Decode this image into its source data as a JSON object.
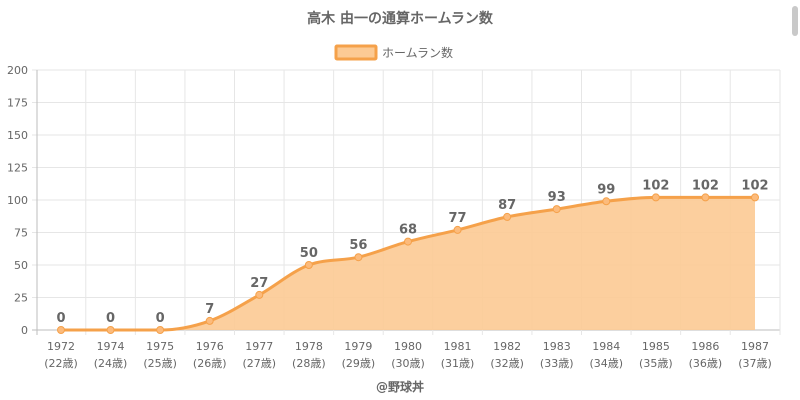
{
  "chart_data": {
    "type": "area",
    "title": "高木 由一の通算ホームラン数",
    "categories": [
      "1972",
      "1974",
      "1975",
      "1976",
      "1977",
      "1978",
      "1979",
      "1980",
      "1981",
      "1982",
      "1983",
      "1984",
      "1985",
      "1986",
      "1987"
    ],
    "category_sublabels": [
      "(22歳)",
      "(24歳)",
      "(25歳)",
      "(26歳)",
      "(27歳)",
      "(28歳)",
      "(29歳)",
      "(30歳)",
      "(31歳)",
      "(32歳)",
      "(33歳)",
      "(34歳)",
      "(35歳)",
      "(36歳)",
      "(37歳)"
    ],
    "series": [
      {
        "name": "ホームラン数",
        "values": [
          0,
          0,
          0,
          7,
          27,
          50,
          56,
          68,
          77,
          87,
          93,
          99,
          102,
          102,
          102
        ]
      }
    ],
    "ylim": [
      0,
      200
    ],
    "yticks": [
      0,
      25,
      50,
      75,
      100,
      125,
      150,
      175,
      200
    ],
    "grid": true,
    "legend": "top-center",
    "footer": "@野球丼",
    "colors": {
      "line": "#f5a14a",
      "fill": "#fcca94",
      "point": "#fcbb7c",
      "text": "#666666",
      "grid": "#e6e6e6",
      "axis": "#bdbdbd"
    }
  }
}
